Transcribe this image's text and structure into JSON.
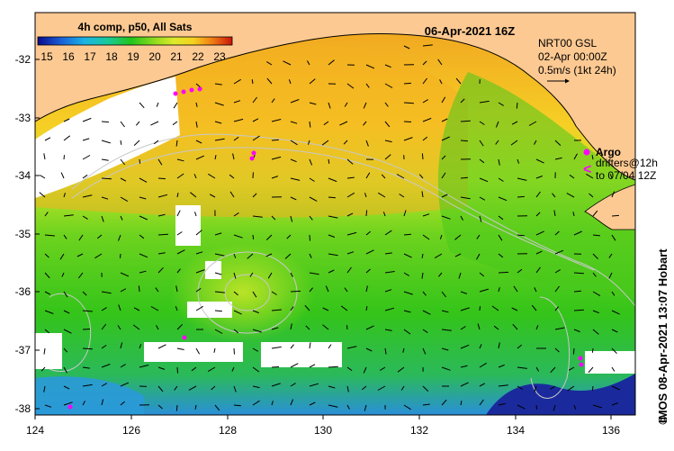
{
  "header": {
    "composite_label": "4h comp, p50, All Sats",
    "date_label": "06-Apr-2021 16Z"
  },
  "colorbar": {
    "ticks": [
      "15",
      "16",
      "17",
      "18",
      "19",
      "20",
      "21",
      "22",
      "23"
    ]
  },
  "currents": {
    "source": "NRT00 GSL",
    "time": "02-Apr 00:00Z",
    "scale": "0.5m/s (1kt 24h)"
  },
  "legend": {
    "argo_label": "Argo",
    "drifters_label": "drifters@12h",
    "drifters_time": "to 07/04 12Z",
    "argo_color": "#ff00ff"
  },
  "axes": {
    "lat_ticks": [
      "-32",
      "-33",
      "-34",
      "-35",
      "-36",
      "-37",
      "-38"
    ],
    "lon_ticks": [
      "124",
      "126",
      "128",
      "130",
      "132",
      "134",
      "136"
    ]
  },
  "credit": "IMOS 08-Apr-2021 13:07 Hobart",
  "copyright": "©",
  "colors": {
    "land": "#fdc992",
    "missing": "#ffffff",
    "sst_warm": "#f29a1b",
    "sst_mid": "#b9e82a",
    "sst_cool": "#33c41a",
    "sst_cold": "#1a2a9c"
  }
}
